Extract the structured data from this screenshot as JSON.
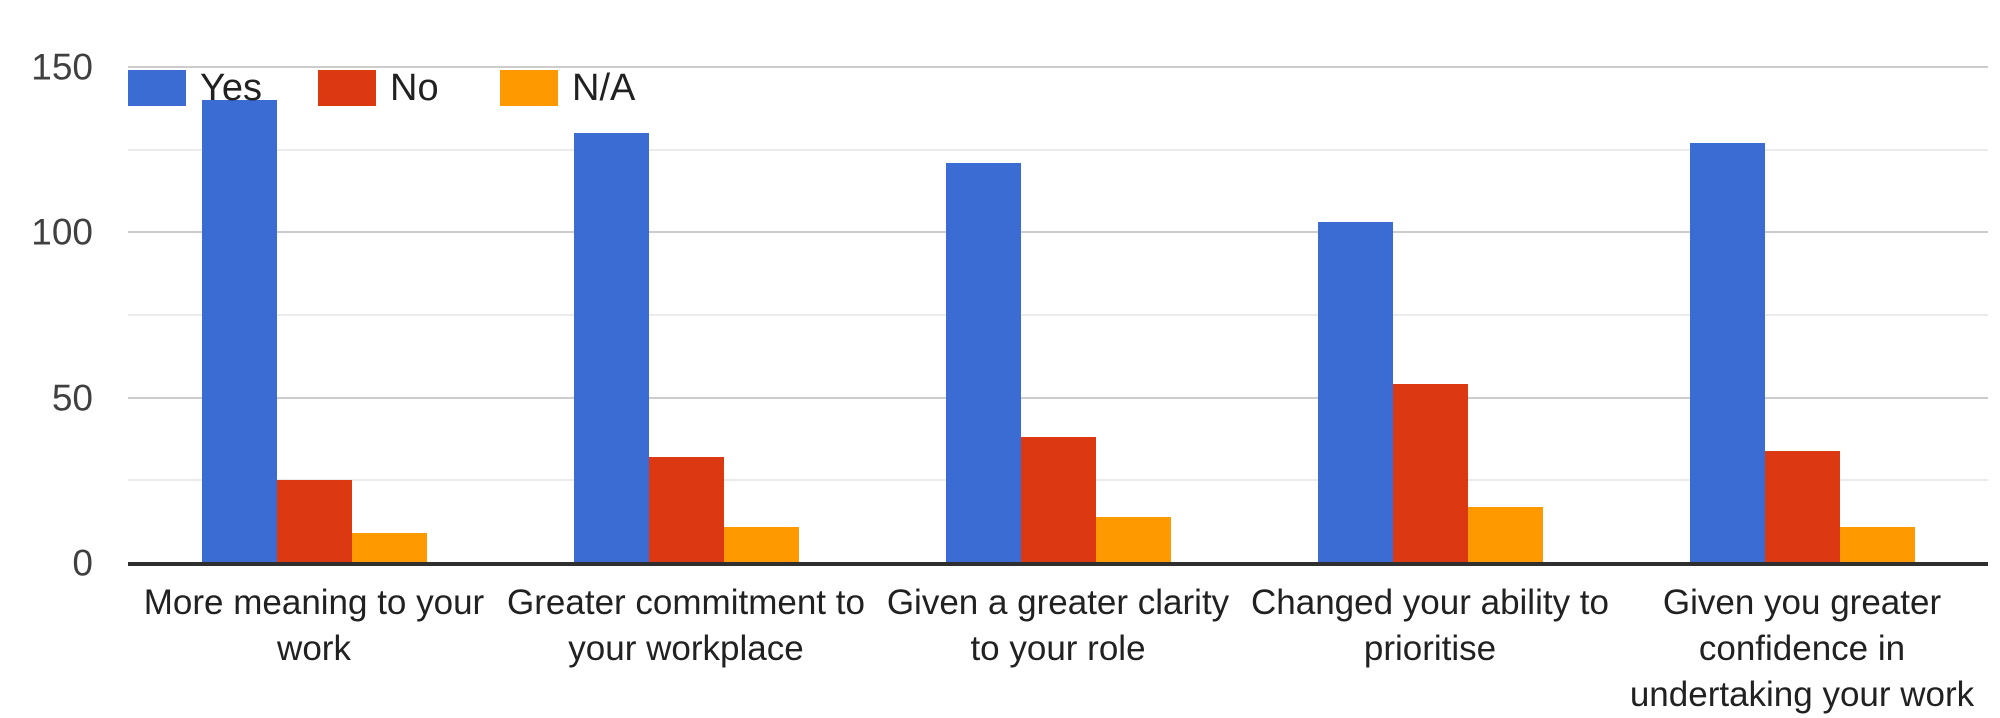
{
  "chart_data": {
    "type": "bar",
    "title": "",
    "categories": [
      "More meaning to your work",
      "Greater commitment to your workplace",
      "Given a greater clarity to your role",
      "Changed your ability to prioritise",
      "Given you greater confidence in undertaking your work"
    ],
    "category_label_lines": [
      [
        "More meaning to your",
        "work"
      ],
      [
        "Greater commitment to",
        "your workplace"
      ],
      [
        "Given a greater clarity",
        "to your role"
      ],
      [
        "Changed your ability to",
        "prioritise"
      ],
      [
        "Given you greater",
        "confidence in",
        "undertaking your work"
      ]
    ],
    "series": [
      {
        "name": "Yes",
        "color": "#3b6cd4",
        "values": [
          140,
          130,
          121,
          103,
          127
        ]
      },
      {
        "name": "No",
        "color": "#dc3912",
        "values": [
          25,
          32,
          38,
          54,
          34
        ]
      },
      {
        "name": "N/A",
        "color": "#ff9900",
        "values": [
          9,
          11,
          14,
          17,
          11
        ]
      }
    ],
    "xlabel": "",
    "ylabel": "",
    "ylim": [
      0,
      150
    ],
    "yticks": [
      0,
      50,
      100,
      150
    ],
    "minor_gridlines": [
      25,
      75,
      125
    ],
    "grid": true,
    "legend_position": "top-left"
  },
  "colors": {
    "major_gridline": "#cccccc",
    "minor_gridline": "#ebebeb",
    "axis_line": "#2f2f2f",
    "tick_text": "#404040",
    "label_text": "#212121",
    "background": "#ffffff"
  }
}
